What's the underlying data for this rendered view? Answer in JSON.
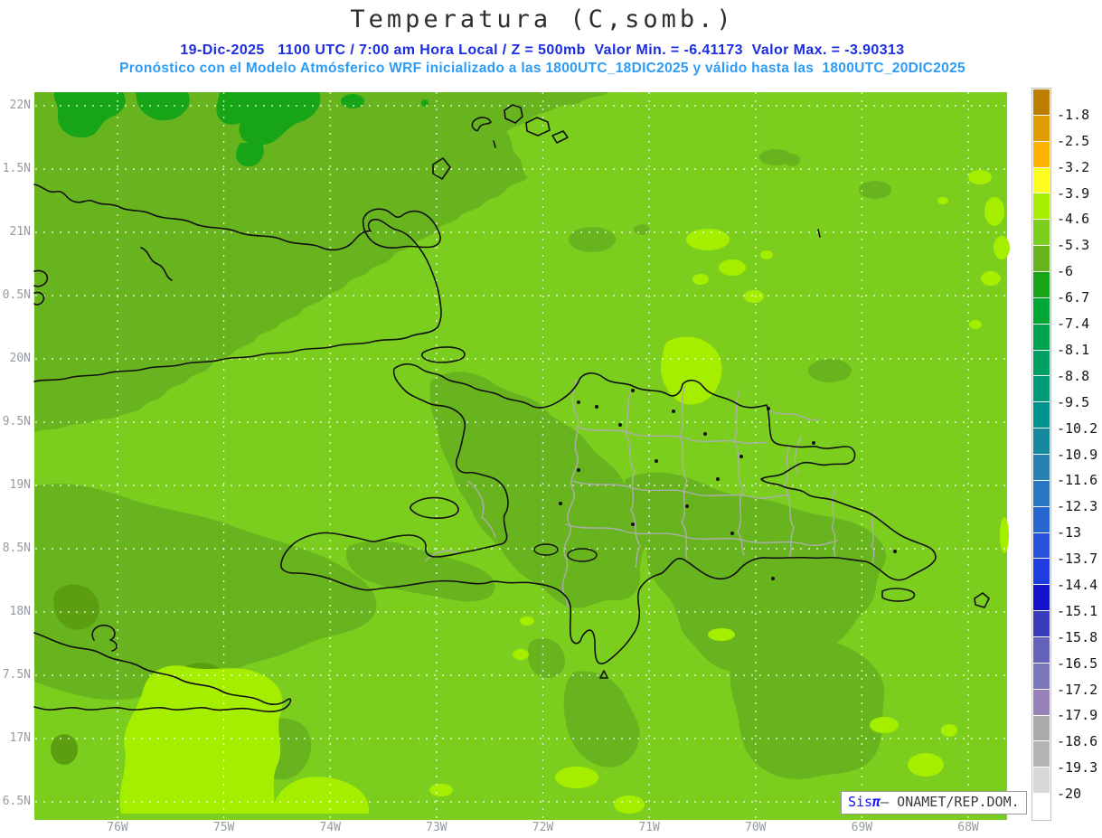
{
  "title": "Temperatura (C,somb.)",
  "header": {
    "subtitle_line1": "19-Dic-2025   1100 UTC / 7:00 am Hora Local / Z = 500mb  Valor Min. = -6.41173  Valor Max. = -3.90313",
    "subtitle_line2": "Pronóstico con el Modelo Atmósferico WRF inicializado a las 1800UTC_18DIC2025 y válido hasta las  1800UTC_20DIC2025",
    "date": "19-Dic-2025",
    "time_utc": "1100 UTC",
    "time_local": "7:00 am Hora Local",
    "level": "Z = 500mb",
    "valor_min": "-6.41173",
    "valor_max": "-3.90313",
    "init": "1800UTC_18DIC2025",
    "valid": "1800UTC_20DIC2025"
  },
  "axes": {
    "lat_labels": [
      "22N",
      "1.5N",
      "21N",
      "0.5N",
      "20N",
      "9.5N",
      "19N",
      "8.5N",
      "18N",
      "7.5N",
      "17N",
      "6.5N"
    ],
    "lon_labels": [
      "76W",
      "75W",
      "74W",
      "73W",
      "72W",
      "71W",
      "70W",
      "69W",
      "68W"
    ]
  },
  "legend": {
    "boundary_labels": [
      "-1.8",
      "-2.5",
      "-3.2",
      "-3.9",
      "-4.6",
      "-5.3",
      "-6",
      "-6.7",
      "-7.4",
      "-8.1",
      "-8.8",
      "-9.5",
      "-10.2",
      "-10.9",
      "-11.6",
      "-12.3",
      "-13",
      "-13.7",
      "-14.4",
      "-15.1",
      "-15.8",
      "-16.5",
      "-17.2",
      "-17.9",
      "-18.6",
      "-19.3",
      "-20"
    ],
    "cell_colors": [
      "#bd7e00",
      "#df9c00",
      "#ffb300",
      "#fdfd1f",
      "#a6ee00",
      "#7cce1e",
      "#68b41e",
      "#17a517",
      "#00a636",
      "#00a450",
      "#00a064",
      "#009a78",
      "#00928c",
      "#17899e",
      "#2681b0",
      "#2876c4",
      "#2866d0",
      "#2852da",
      "#1e3ce0",
      "#1513cb",
      "#3c3abd",
      "#6362b8",
      "#7b76b9",
      "#9783b8",
      "#ababab",
      "#b5b5b5",
      "#d8d8d8",
      "#ffffff"
    ]
  },
  "palette": {
    "band_m39_m46": "#a6ee00",
    "band_m46_m53": "#7cce1e",
    "band_m53_m60": "#68b41e",
    "band_m60_m67": "#17a517",
    "band_dark_variant": "#5c9e12",
    "subtitle1": "#1b2de0",
    "subtitle2": "#2e9cf6",
    "watermark_blue": "#1414f0",
    "axis_label": "#949ca1",
    "title": "#2e2e2e"
  },
  "watermark": {
    "brand": "Sis",
    "pi": "π",
    "rest": "– ONAMET/REP.DOM."
  },
  "chart_data": {
    "type": "heatmap",
    "title": "Temperatura (C,somb.)",
    "value_min": -6.41173,
    "value_max": -3.90313,
    "units": "C",
    "level": "500mb",
    "scale_boundaries": [
      -1.8,
      -2.5,
      -3.2,
      -3.9,
      -4.6,
      -5.3,
      -6,
      -6.7,
      -7.4,
      -8.1,
      -8.8,
      -9.5,
      -10.2,
      -10.9,
      -11.6,
      -12.3,
      -13,
      -13.7,
      -14.4,
      -15.1,
      -15.8,
      -16.5,
      -17.2,
      -17.9,
      -18.6,
      -19.3,
      -20
    ],
    "lon_range_labels": [
      "76W",
      "68W"
    ],
    "lat_range_labels": [
      "22N",
      "6.5N"
    ],
    "legend_position": "right"
  }
}
